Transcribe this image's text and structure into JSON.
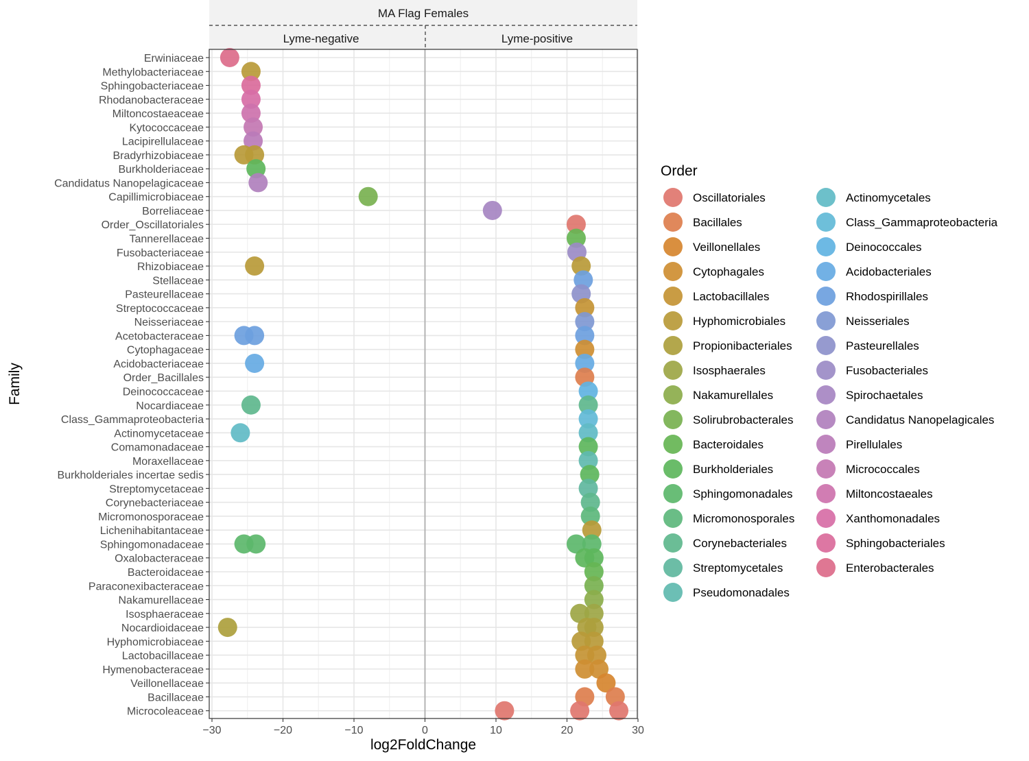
{
  "chart_data": {
    "type": "scatter",
    "title": "MA Flag Females",
    "facets": [
      "Lyme-negative",
      "Lyme-positive"
    ],
    "xlabel": "log2FoldChange",
    "ylabel": "Family",
    "xlim": [
      -30,
      30
    ],
    "xticks": [
      -30,
      -20,
      -10,
      0,
      10,
      20,
      30
    ],
    "grid": true,
    "legend_title": "Order",
    "legend_position": "right",
    "families": [
      "Erwiniaceae",
      "Methylobacteriaceae",
      "Sphingobacteriaceae",
      "Rhodanobacteraceae",
      "Miltoncostaeaceae",
      "Kytococcaceae",
      "Lacipirellulaceae",
      "Bradyrhizobiaceae",
      "Burkholderiaceae",
      "Candidatus Nanopelagicaceae",
      "Capillimicrobiaceae",
      "Borreliaceae",
      "Order_Oscillatoriales",
      "Tannerellaceae",
      "Fusobacteriaceae",
      "Rhizobiaceae",
      "Stellaceae",
      "Pasteurellaceae",
      "Streptococcaceae",
      "Neisseriaceae",
      "Acetobacteraceae",
      "Cytophagaceae",
      "Acidobacteriaceae",
      "Order_Bacillales",
      "Deinococcaceae",
      "Nocardiaceae",
      "Class_Gammaproteobacteria",
      "Actinomycetaceae",
      "Comamonadaceae",
      "Moraxellaceae",
      "Burkholderiales incertae sedis",
      "Streptomycetaceae",
      "Corynebacteriaceae",
      "Micromonosporaceae",
      "Lichenihabitantaceae",
      "Sphingomonadaceae",
      "Oxalobacteraceae",
      "Bacteroidaceae",
      "Paraconexibacteraceae",
      "Nakamurellaceae",
      "Isosphaeraceae",
      "Nocardioidaceae",
      "Hyphomicrobiaceae",
      "Lactobacillaceae",
      "Hymenobacteraceae",
      "Veillonellaceae",
      "Bacillaceae",
      "Microcoleaceae"
    ],
    "orders": [
      {
        "name": "Oscillatoriales",
        "color": "#E0766E"
      },
      {
        "name": "Bacillales",
        "color": "#DD7E4D"
      },
      {
        "name": "Veillonellales",
        "color": "#D6862F"
      },
      {
        "name": "Cytophagales",
        "color": "#CE8E32"
      },
      {
        "name": "Lactobacillales",
        "color": "#C49434"
      },
      {
        "name": "Hyphomicrobiales",
        "color": "#B99A38"
      },
      {
        "name": "Propionibacteriales",
        "color": "#ACA03D"
      },
      {
        "name": "Isosphaerales",
        "color": "#9DA645"
      },
      {
        "name": "Nakamurellales",
        "color": "#8CAC4B"
      },
      {
        "name": "Solirubrobacterales",
        "color": "#78B150"
      },
      {
        "name": "Bacteroidales",
        "color": "#66B554"
      },
      {
        "name": "Burkholderiales",
        "color": "#5DB65C"
      },
      {
        "name": "Sphingomonadales",
        "color": "#5CB76B"
      },
      {
        "name": "Micromonosporales",
        "color": "#5DB77C"
      },
      {
        "name": "Corynebacteriales",
        "color": "#5EB78D"
      },
      {
        "name": "Streptomycetales",
        "color": "#5FB79E"
      },
      {
        "name": "Pseudomonadales",
        "color": "#60BAAF"
      },
      {
        "name": "Actinomycetales",
        "color": "#61BBC6"
      },
      {
        "name": "Class_Gammaproteobacteria",
        "color": "#62BAD7"
      },
      {
        "name": "Deinococcales",
        "color": "#61B3E2"
      },
      {
        "name": "Acidobacteriales",
        "color": "#66AAE3"
      },
      {
        "name": "Rhodospirillales",
        "color": "#6D9FDE"
      },
      {
        "name": "Neisseriales",
        "color": "#7F98D3"
      },
      {
        "name": "Pasteurellales",
        "color": "#8D91CB"
      },
      {
        "name": "Fusobacteriales",
        "color": "#9B8BC6"
      },
      {
        "name": "Spirochaetales",
        "color": "#A685C2"
      },
      {
        "name": "Candidatus Nanopelagicales",
        "color": "#B080BD"
      },
      {
        "name": "Pirellulales",
        "color": "#BA7BB8"
      },
      {
        "name": "Micrococcales",
        "color": "#C377B2"
      },
      {
        "name": "Miltoncostaeales",
        "color": "#CD72AD"
      },
      {
        "name": "Xanthomonadales",
        "color": "#D76EA6"
      },
      {
        "name": "Sphingobacteriales",
        "color": "#DA6B9B"
      },
      {
        "name": "Enterobacterales",
        "color": "#DC6B8A"
      }
    ],
    "points": [
      {
        "family": "Erwiniaceae",
        "order": "Enterobacterales",
        "x": -27.5
      },
      {
        "family": "Methylobacteriaceae",
        "order": "Hyphomicrobiales",
        "x": -24.5
      },
      {
        "family": "Sphingobacteriaceae",
        "order": "Sphingobacteriales",
        "x": -24.5
      },
      {
        "family": "Rhodanobacteraceae",
        "order": "Xanthomonadales",
        "x": -24.5
      },
      {
        "family": "Miltoncostaeaceae",
        "order": "Miltoncostaeales",
        "x": -24.5
      },
      {
        "family": "Kytococcaceae",
        "order": "Micrococcales",
        "x": -24.2
      },
      {
        "family": "Lacipirellulaceae",
        "order": "Pirellulales",
        "x": -24.2
      },
      {
        "family": "Bradyrhizobiaceae",
        "order": "Hyphomicrobiales",
        "x": -25.5
      },
      {
        "family": "Bradyrhizobiaceae",
        "order": "Hyphomicrobiales",
        "x": -24.0
      },
      {
        "family": "Burkholderiaceae",
        "order": "Burkholderiales",
        "x": -23.8
      },
      {
        "family": "Candidatus Nanopelagicaceae",
        "order": "Candidatus Nanopelagicales",
        "x": -23.5
      },
      {
        "family": "Capillimicrobiaceae",
        "order": "Solirubrobacterales",
        "x": -8.0
      },
      {
        "family": "Borreliaceae",
        "order": "Spirochaetales",
        "x": 9.5
      },
      {
        "family": "Order_Oscillatoriales",
        "order": "Oscillatoriales",
        "x": 21.3
      },
      {
        "family": "Tannerellaceae",
        "order": "Bacteroidales",
        "x": 21.3
      },
      {
        "family": "Fusobacteriaceae",
        "order": "Fusobacteriales",
        "x": 21.4
      },
      {
        "family": "Rhizobiaceae",
        "order": "Hyphomicrobiales",
        "x": -24.0
      },
      {
        "family": "Rhizobiaceae",
        "order": "Hyphomicrobiales",
        "x": 22.0
      },
      {
        "family": "Stellaceae",
        "order": "Rhodospirillales",
        "x": 22.3
      },
      {
        "family": "Pasteurellaceae",
        "order": "Pasteurellales",
        "x": 22.0
      },
      {
        "family": "Streptococcaceae",
        "order": "Lactobacillales",
        "x": 22.5
      },
      {
        "family": "Neisseriaceae",
        "order": "Neisseriales",
        "x": 22.5
      },
      {
        "family": "Acetobacteraceae",
        "order": "Rhodospirillales",
        "x": -25.5
      },
      {
        "family": "Acetobacteraceae",
        "order": "Rhodospirillales",
        "x": -24.0
      },
      {
        "family": "Acetobacteraceae",
        "order": "Rhodospirillales",
        "x": 22.5
      },
      {
        "family": "Cytophagaceae",
        "order": "Cytophagales",
        "x": 22.5
      },
      {
        "family": "Acidobacteriaceae",
        "order": "Acidobacteriales",
        "x": -24.0
      },
      {
        "family": "Acidobacteriaceae",
        "order": "Acidobacteriales",
        "x": 22.5
      },
      {
        "family": "Order_Bacillales",
        "order": "Bacillales",
        "x": 22.5
      },
      {
        "family": "Deinococcaceae",
        "order": "Deinococcales",
        "x": 23.0
      },
      {
        "family": "Nocardiaceae",
        "order": "Corynebacteriales",
        "x": -24.5
      },
      {
        "family": "Nocardiaceae",
        "order": "Corynebacteriales",
        "x": 23.0
      },
      {
        "family": "Class_Gammaproteobacteria",
        "order": "Class_Gammaproteobacteria",
        "x": 23.0
      },
      {
        "family": "Actinomycetaceae",
        "order": "Actinomycetales",
        "x": -26.0
      },
      {
        "family": "Actinomycetaceae",
        "order": "Actinomycetales",
        "x": 23.0
      },
      {
        "family": "Comamonadaceae",
        "order": "Burkholderiales",
        "x": 23.0
      },
      {
        "family": "Moraxellaceae",
        "order": "Pseudomonadales",
        "x": 23.0
      },
      {
        "family": "Burkholderiales incertae sedis",
        "order": "Burkholderiales",
        "x": 23.2
      },
      {
        "family": "Streptomycetaceae",
        "order": "Streptomycetales",
        "x": 23.0
      },
      {
        "family": "Corynebacteriaceae",
        "order": "Corynebacteriales",
        "x": 23.3
      },
      {
        "family": "Micromonosporaceae",
        "order": "Micromonosporales",
        "x": 23.3
      },
      {
        "family": "Lichenihabitantaceae",
        "order": "Hyphomicrobiales",
        "x": 23.5
      },
      {
        "family": "Sphingomonadaceae",
        "order": "Sphingomonadales",
        "x": -25.5
      },
      {
        "family": "Sphingomonadaceae",
        "order": "Sphingomonadales",
        "x": -23.8
      },
      {
        "family": "Sphingomonadaceae",
        "order": "Sphingomonadales",
        "x": 21.3
      },
      {
        "family": "Sphingomonadaceae",
        "order": "Sphingomonadales",
        "x": 23.5
      },
      {
        "family": "Oxalobacteraceae",
        "order": "Burkholderiales",
        "x": 22.5
      },
      {
        "family": "Oxalobacteraceae",
        "order": "Burkholderiales",
        "x": 23.8
      },
      {
        "family": "Bacteroidaceae",
        "order": "Bacteroidales",
        "x": 23.8
      },
      {
        "family": "Paraconexibacteraceae",
        "order": "Solirubrobacterales",
        "x": 23.8
      },
      {
        "family": "Nakamurellaceae",
        "order": "Nakamurellales",
        "x": 23.8
      },
      {
        "family": "Isosphaeraceae",
        "order": "Isosphaerales",
        "x": 21.8
      },
      {
        "family": "Isosphaeraceae",
        "order": "Isosphaerales",
        "x": 23.8
      },
      {
        "family": "Nocardioidaceae",
        "order": "Propionibacteriales",
        "x": -27.8
      },
      {
        "family": "Nocardioidaceae",
        "order": "Propionibacteriales",
        "x": 22.8
      },
      {
        "family": "Nocardioidaceae",
        "order": "Propionibacteriales",
        "x": 23.8
      },
      {
        "family": "Hyphomicrobiaceae",
        "order": "Hyphomicrobiales",
        "x": 22.0
      },
      {
        "family": "Hyphomicrobiaceae",
        "order": "Hyphomicrobiales",
        "x": 23.8
      },
      {
        "family": "Lactobacillaceae",
        "order": "Lactobacillales",
        "x": 22.5
      },
      {
        "family": "Lactobacillaceae",
        "order": "Lactobacillales",
        "x": 24.2
      },
      {
        "family": "Hymenobacteraceae",
        "order": "Cytophagales",
        "x": 22.5
      },
      {
        "family": "Hymenobacteraceae",
        "order": "Cytophagales",
        "x": 24.5
      },
      {
        "family": "Veillonellaceae",
        "order": "Veillonellales",
        "x": 25.5
      },
      {
        "family": "Bacillaceae",
        "order": "Bacillales",
        "x": 22.5
      },
      {
        "family": "Bacillaceae",
        "order": "Bacillales",
        "x": 26.8
      },
      {
        "family": "Microcoleaceae",
        "order": "Oscillatoriales",
        "x": 11.2
      },
      {
        "family": "Microcoleaceae",
        "order": "Oscillatoriales",
        "x": 21.8
      },
      {
        "family": "Microcoleaceae",
        "order": "Oscillatoriales",
        "x": 27.3
      }
    ]
  }
}
